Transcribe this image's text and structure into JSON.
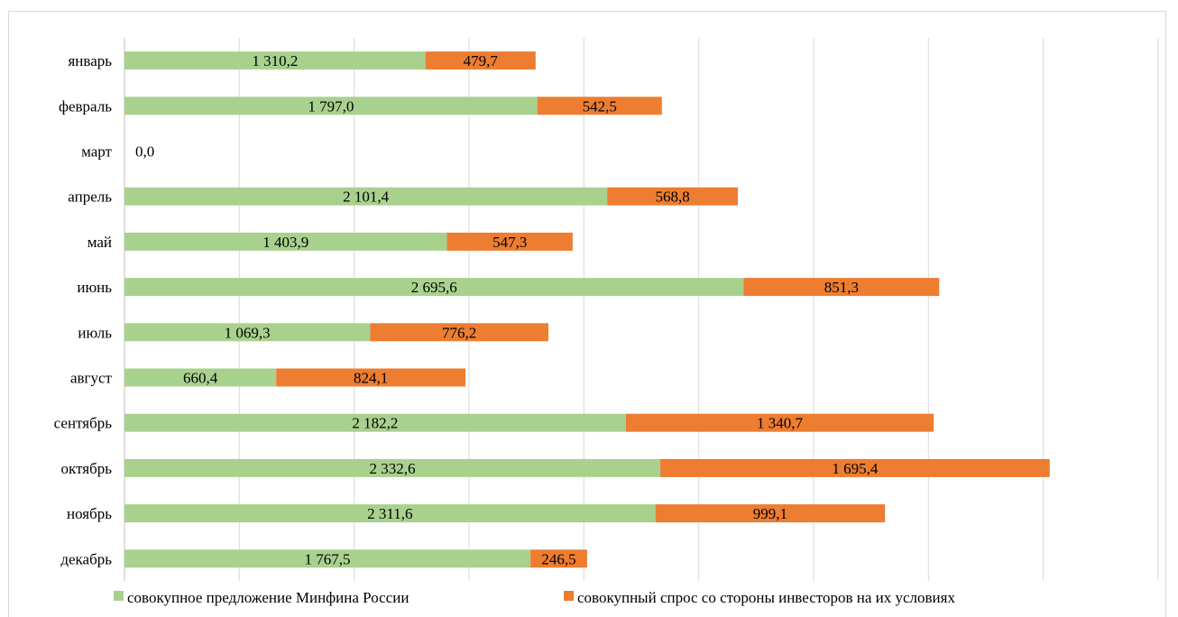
{
  "chart_data": {
    "type": "bar",
    "orientation": "horizontal",
    "stacked": true,
    "title": "",
    "xlabel": "",
    "ylabel": "",
    "xlim": [
      0,
      4500
    ],
    "grid": true,
    "legend_position": "bottom",
    "categories": [
      "январь",
      "февраль",
      "март",
      "апрель",
      "май",
      "июнь",
      "июль",
      "август",
      "сентябрь",
      "октябрь",
      "ноябрь",
      "декабрь"
    ],
    "series": [
      {
        "name": "совокупное предложение Минфина  России",
        "color": "#a9d18e",
        "values": [
          1310.2,
          1797.0,
          0.0,
          2101.4,
          1403.9,
          2695.6,
          1069.3,
          660.4,
          2182.2,
          2332.6,
          2311.6,
          1767.5
        ],
        "labels": [
          "1 310,2",
          "1 797,0",
          "0,0",
          "2 101,4",
          "1 403,9",
          "2 695,6",
          "1 069,3",
          "660,4",
          "2 182,2",
          "2 332,6",
          "2 311,6",
          "1 767,5"
        ]
      },
      {
        "name": "совокупный спрос со стороны инвесторов на их  условиях",
        "color": "#ed7d31",
        "values": [
          479.7,
          542.5,
          0.0,
          568.8,
          547.3,
          851.3,
          776.2,
          824.1,
          1340.7,
          1695.4,
          999.1,
          246.5
        ],
        "labels": [
          "479,7",
          "542,5",
          "",
          "568,8",
          "547,3",
          "851,3",
          "776,2",
          "824,1",
          "1 340,7",
          "1 695,4",
          "999,1",
          "246,5"
        ]
      }
    ]
  }
}
